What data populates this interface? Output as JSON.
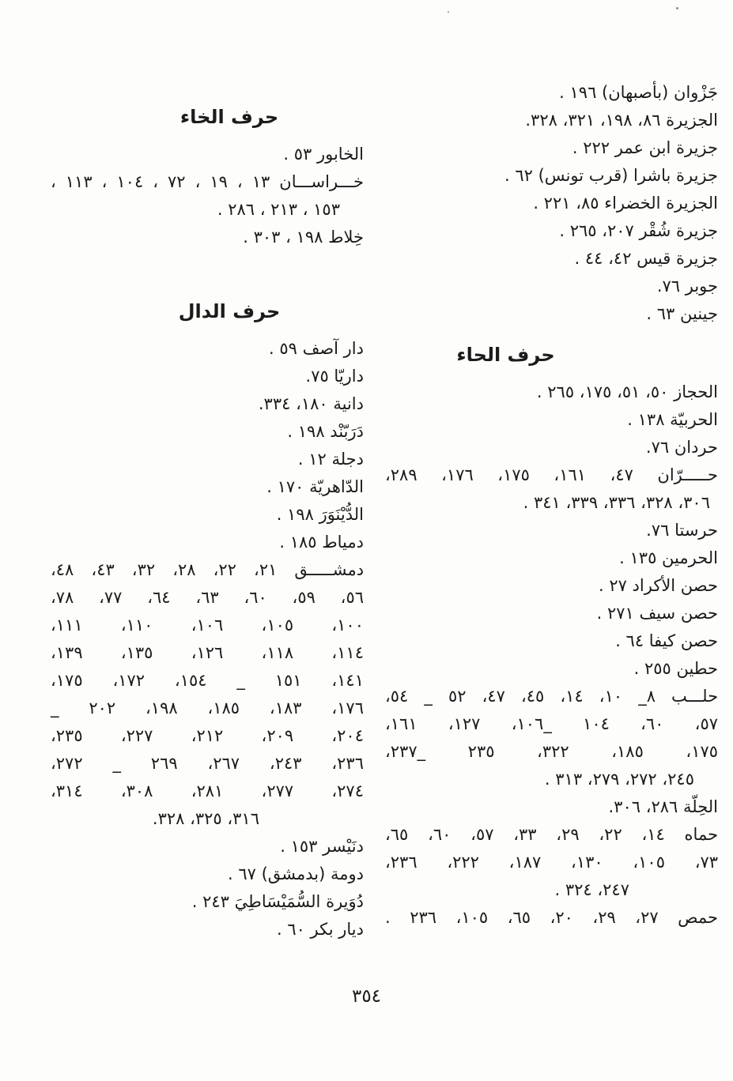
{
  "document": {
    "page_number": "٣٥٤",
    "colors": {
      "paper": "#fdfdfb",
      "ink": "#1b1b1b"
    }
  },
  "right_column": {
    "blocks": [
      "جَزْوان (بأصبهان) ١٩٦ .",
      "الجزيرة ٨٦، ١٩٨، ٣٢١، ٣٢٨.",
      "جزيرة ابن عمر ٢٢٢ .",
      "جزيرة باشرا (قرب تونس) ٦٢ .",
      "الجزيرة الخضراء ٨٥، ٢٢١ .",
      "جزيرة شُقْر ٢٠٧، ٢٦٥ .",
      "جزيرة قيس ٤٢، ٤٤ .",
      "جوبر ٧٦.",
      "جينين ٦٣ .",
      "حرف الحاء",
      "الحجاز ٥٠، ٥١، ١٧٥، ٢٦٥ .",
      "الحربيّة ١٣٨ .",
      "حردان ٧٦.",
      "حـــــرّان ٤٧، ١٦١، ١٧٥، ١٧٦، ٢٨٩،",
      "٣٠٦، ٣٢٨، ٣٣٦، ٣٣٩، ٣٤١ .",
      "حرستا ٧٦.",
      "الحرمين ١٣٥ .",
      "حصن الأكراد ٢٧ .",
      "حصن سيف ٢٧١ .",
      "حصن كيفا ٦٤ .",
      "حطين ٢٥٥ .",
      "حلـــب ٨_ ١٠، ١٤، ٤٥، ٤٧، ٥٢ _ ٥٤،",
      "٥٧، ٦٠، ١٠٤ _١٠٦، ١٢٧، ١٦١،",
      "١٧٥، ١٨٥، ٣٢٢، ٢٣٥ _٢٣٧،",
      "٢٤٥، ٢٧٢، ٢٧٩، ٣١٣ .",
      "الحِلّة ٢٨٦، ٣٠٦.",
      "حماه ١٤، ٢٢، ٢٩، ٣٣، ٥٧، ٦٠، ٦٥،",
      "٧٣، ١٠٥، ١٣٠، ١٨٧، ٢٢٢، ٢٣٦،",
      "٢٤٧، ٣٢٤ .",
      "حمص ٢٧، ٢٩، ٢٠، ٦٥، ١٠٥، ٢٣٦ ."
    ]
  },
  "left_column": {
    "blocks": [
      "حرف الخاء",
      "الخابور ٥٣ .",
      "خـــراســـان ١٣ ، ١٩ ، ٧٢ ، ١٠٤ ، ١١٣ ،",
      "١٥٣ ، ٢١٣ ، ٢٨٦ .",
      "خِلاط ١٩٨ ، ٣٠٣ .",
      "حرف الدال",
      "دار آصف ٥٩ .",
      "داريّا ٧٥.",
      "دانية ١٨٠، ٣٣٤.",
      "دَرَبّنْد ١٩٨ .",
      "دجلة ١٢ .",
      "الدّاهريّة ١٧٠ .",
      "الدُّيْنَوَرَ ١٩٨ .",
      "دمياط ١٨٥ .",
      "دمشـــــق ٢١، ٢٢، ٢٨، ٣٢، ٤٣، ٤٨،",
      "٥٦، ٥٩، ٦٠، ٦٣، ٦٤، ٧٧، ٧٨،",
      "١٠٠، ١٠٥، ١٠٦، ١١٠، ١١١،",
      "١١٤، ١١٨، ١٢٦، ١٣٥، ١٣٩،",
      "١٤١، ١٥١ _ ١٥٤، ١٧٢، ١٧٥،",
      "١٧٦، ١٨٣، ١٨٥، ١٩٨، ٢٠٢ _",
      "٢٠٤، ٢٠٩، ٢١٢، ٢٢٧، ٢٣٥،",
      "٢٣٦، ٢٤٣، ٢٦٧، ٢٦٩ _ ٢٧٢،",
      "٢٧٤، ٢٧٧، ٢٨١، ٣٠٨، ٣١٤،",
      "٣١٦، ٣٢٥، ٣٢٨.",
      "دنَيْسر ١٥٣ .",
      "دومة (بدمشق) ٦٧ .",
      "دُوَيرة السُّمَيْسَاطِيَ ٢٤٣ .",
      "ديار بكر ٦٠ ."
    ]
  }
}
